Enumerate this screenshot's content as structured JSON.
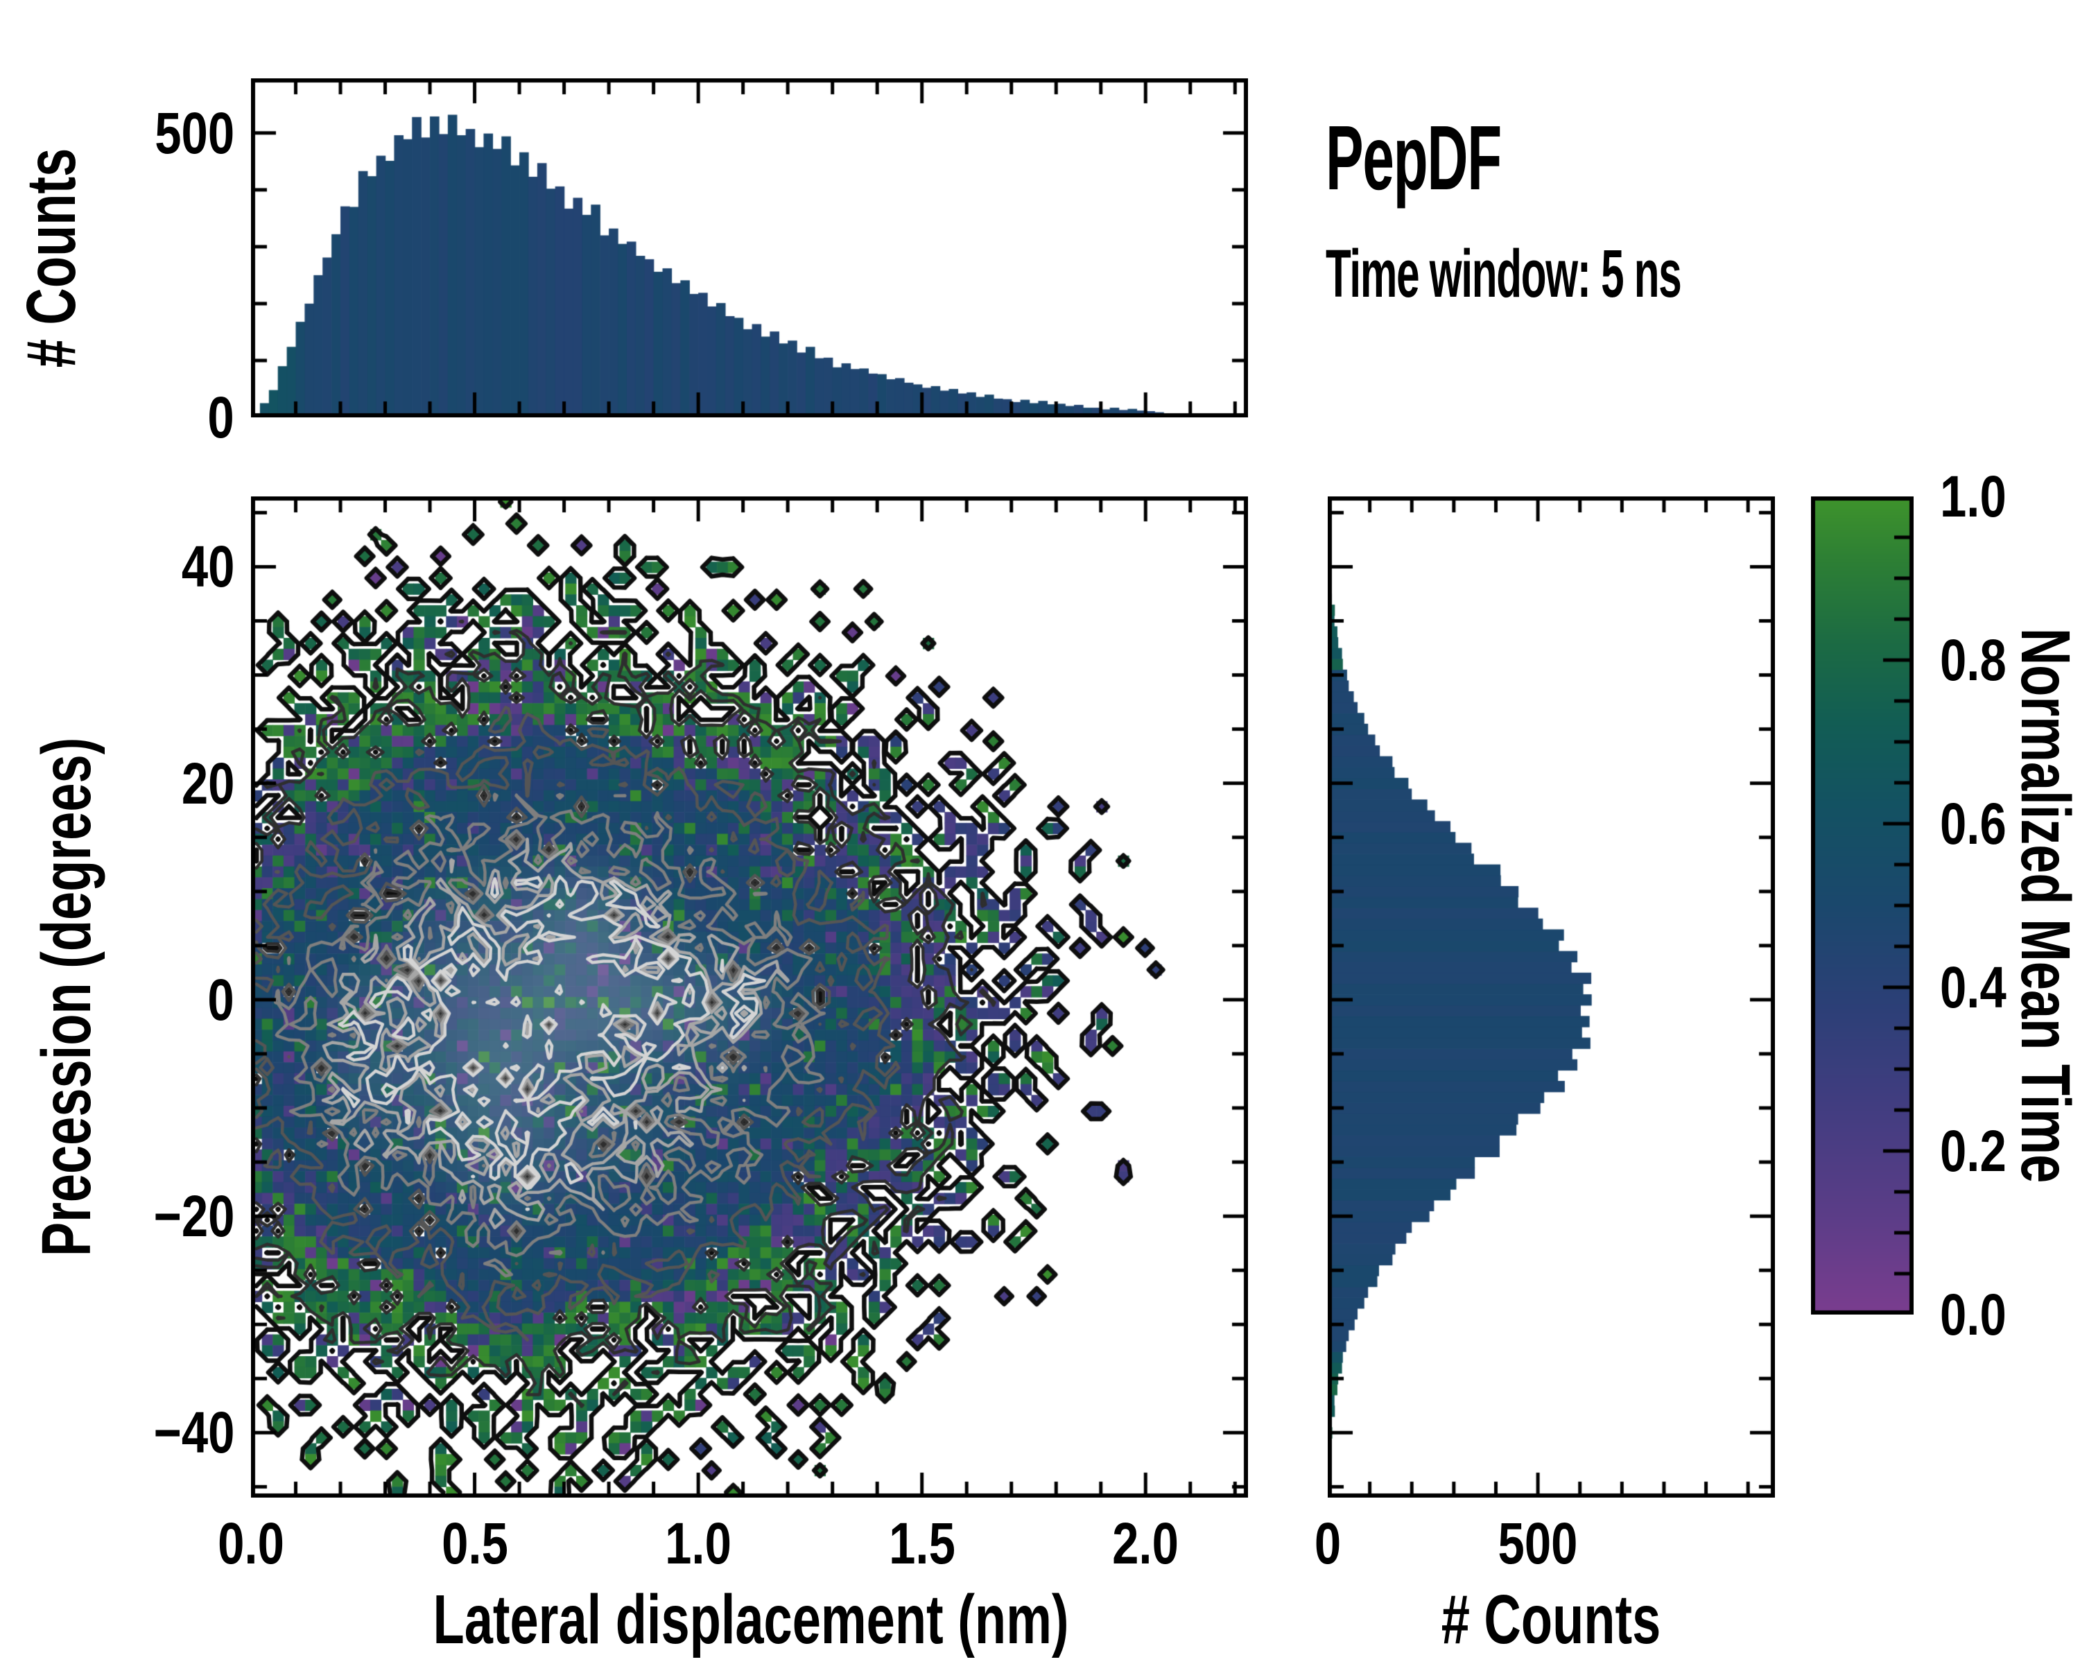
{
  "title": {
    "heading": "PepDF",
    "subheading": "Time window: 5 ns"
  },
  "colors": {
    "background": "#ffffff",
    "axis": "#000000",
    "histogram_bar": "#124a6e"
  },
  "chart_data": [
    {
      "id": "top_histogram",
      "type": "bar",
      "orientation": "vertical",
      "ylabel": "# Counts",
      "x_start": 0.01,
      "x_step": 0.02,
      "values": [
        3,
        25,
        48,
        90,
        124,
        168,
        200,
        250,
        281,
        322,
        371,
        370,
        433,
        424,
        460,
        451,
        496,
        489,
        528,
        492,
        529,
        498,
        532,
        496,
        507,
        475,
        499,
        472,
        494,
        443,
        466,
        423,
        447,
        402,
        406,
        367,
        386,
        356,
        374,
        320,
        332,
        305,
        309,
        284,
        278,
        256,
        262,
        236,
        241,
        217,
        219,
        195,
        201,
        178,
        175,
        155,
        164,
        142,
        151,
        130,
        135,
        114,
        124,
        104,
        105,
        88,
        95,
        85,
        86,
        77,
        76,
        67,
        69,
        61,
        58,
        52,
        55,
        47,
        50,
        42,
        44,
        36,
        40,
        33,
        32,
        27,
        31,
        25,
        29,
        23,
        24,
        20,
        22,
        17,
        17,
        14,
        17,
        13,
        15,
        12,
        11,
        9,
        6,
        5,
        4,
        3,
        2,
        2,
        1,
        1,
        1
      ],
      "xlim": [
        0,
        2.229
      ],
      "ylim": [
        0,
        596
      ],
      "y_ticks": {
        "major": [
          0,
          500
        ],
        "labels": [
          "0",
          "500"
        ],
        "minor_step": 100
      },
      "bar_color_rule": {
        "base": 0.46,
        "jitter": 0.08,
        "edge_bins": 8,
        "edge_boost": 0.16
      }
    },
    {
      "id": "joint_heatmap",
      "type": "heatmap",
      "xlabel": "Lateral displacement (nm)",
      "ylabel": "Precession (degrees)",
      "xlim": [
        0,
        2.229
      ],
      "ylim": [
        -46,
        46.5
      ],
      "x_ticks": {
        "major": [
          0,
          0.5,
          1.0,
          1.5,
          2.0
        ],
        "labels": [
          "0.0",
          "0.5",
          "1.0",
          "1.5",
          "2.0"
        ],
        "minor_step": 0.1
      },
      "y_ticks": {
        "major": [
          40,
          20,
          0,
          -20,
          -40
        ],
        "labels": [
          "40",
          "20",
          "0",
          "−20",
          "−40"
        ],
        "minor_step": 5
      },
      "grid": {
        "nx": 92,
        "ny": 92
      },
      "density": {
        "cx": 0.58,
        "cy": -1.5,
        "sigma_left": 0.36,
        "sigma_right": 0.5,
        "sigma_y": 16.5,
        "noise": 0.5,
        "seed": 1337,
        "peak_count": 90,
        "occupy_full": 0.25,
        "occupy_zero": 0.012
      },
      "appearance": {
        "hole_base": 0.03,
        "hole_edge": 0.3,
        "spread_core": 0.18,
        "spread_edge": 0.75,
        "center_whiten": 0.2,
        "core_green_fleck": 0.07,
        "core_purple_fleck": 0.06
      },
      "contours": {
        "levels": [
          0.5,
          10,
          26,
          44,
          60,
          72
        ],
        "colors": [
          "#0e0e0e",
          "#2e2e2e",
          "#555555",
          "#7f7f7f",
          "#a6a6a6",
          "#d4d4d4"
        ],
        "widths": [
          6.5,
          4.5,
          4.5,
          4.5,
          4.5,
          4.5
        ]
      }
    },
    {
      "id": "right_histogram",
      "type": "bar",
      "orientation": "horizontal",
      "xlabel": "# Counts",
      "y_start": -46,
      "y_step": 1,
      "values": [
        4,
        2,
        7,
        4,
        6,
        5,
        11,
        10,
        17,
        16,
        23,
        25,
        34,
        36,
        44,
        50,
        64,
        71,
        87,
        96,
        118,
        122,
        154,
        161,
        187,
        200,
        242,
        253,
        292,
        306,
        350,
        350,
        409,
        409,
        449,
        453,
        506,
        515,
        564,
        548,
        594,
        582,
        625,
        605,
        623,
        602,
        628,
        608,
        627,
        580,
        594,
        550,
        562,
        512,
        501,
        453,
        454,
        412,
        411,
        348,
        342,
        304,
        292,
        255,
        237,
        200,
        192,
        159,
        154,
        124,
        113,
        96,
        87,
        71,
        62,
        50,
        46,
        36,
        34,
        25,
        23,
        16,
        17,
        10,
        9,
        5,
        8,
        4,
        7,
        2,
        2,
        1,
        1
      ],
      "xlim": [
        0,
        1064
      ],
      "ylim": [
        -46,
        46.5
      ],
      "x_ticks": {
        "major": [
          0,
          500
        ],
        "labels": [
          "0",
          "500"
        ],
        "minor_step": 100
      },
      "bar_color_rule": {
        "base": 0.47,
        "jitter": 0.06,
        "low_count": 40,
        "low_boost": 0.17
      }
    },
    {
      "id": "colorbar",
      "type": "colorbar",
      "label": "Normalized Mean Time",
      "ticks": [
        1.0,
        0.8,
        0.6,
        0.4,
        0.2,
        0.0
      ],
      "tick_labels": [
        "1.0",
        "0.8",
        "0.6",
        "0.4",
        "0.2",
        "0.0"
      ],
      "minor_step": 0.05,
      "range": [
        0.0,
        1.0
      ],
      "colormap": [
        [
          0.0,
          "#7b3e8f"
        ],
        [
          0.12,
          "#5c3d88"
        ],
        [
          0.25,
          "#433d81"
        ],
        [
          0.38,
          "#2c4077"
        ],
        [
          0.5,
          "#1b486d"
        ],
        [
          0.62,
          "#145263"
        ],
        [
          0.72,
          "#125d55"
        ],
        [
          0.82,
          "#1c6b44"
        ],
        [
          0.92,
          "#2d7f35"
        ],
        [
          1.0,
          "#3f942c"
        ]
      ]
    }
  ]
}
